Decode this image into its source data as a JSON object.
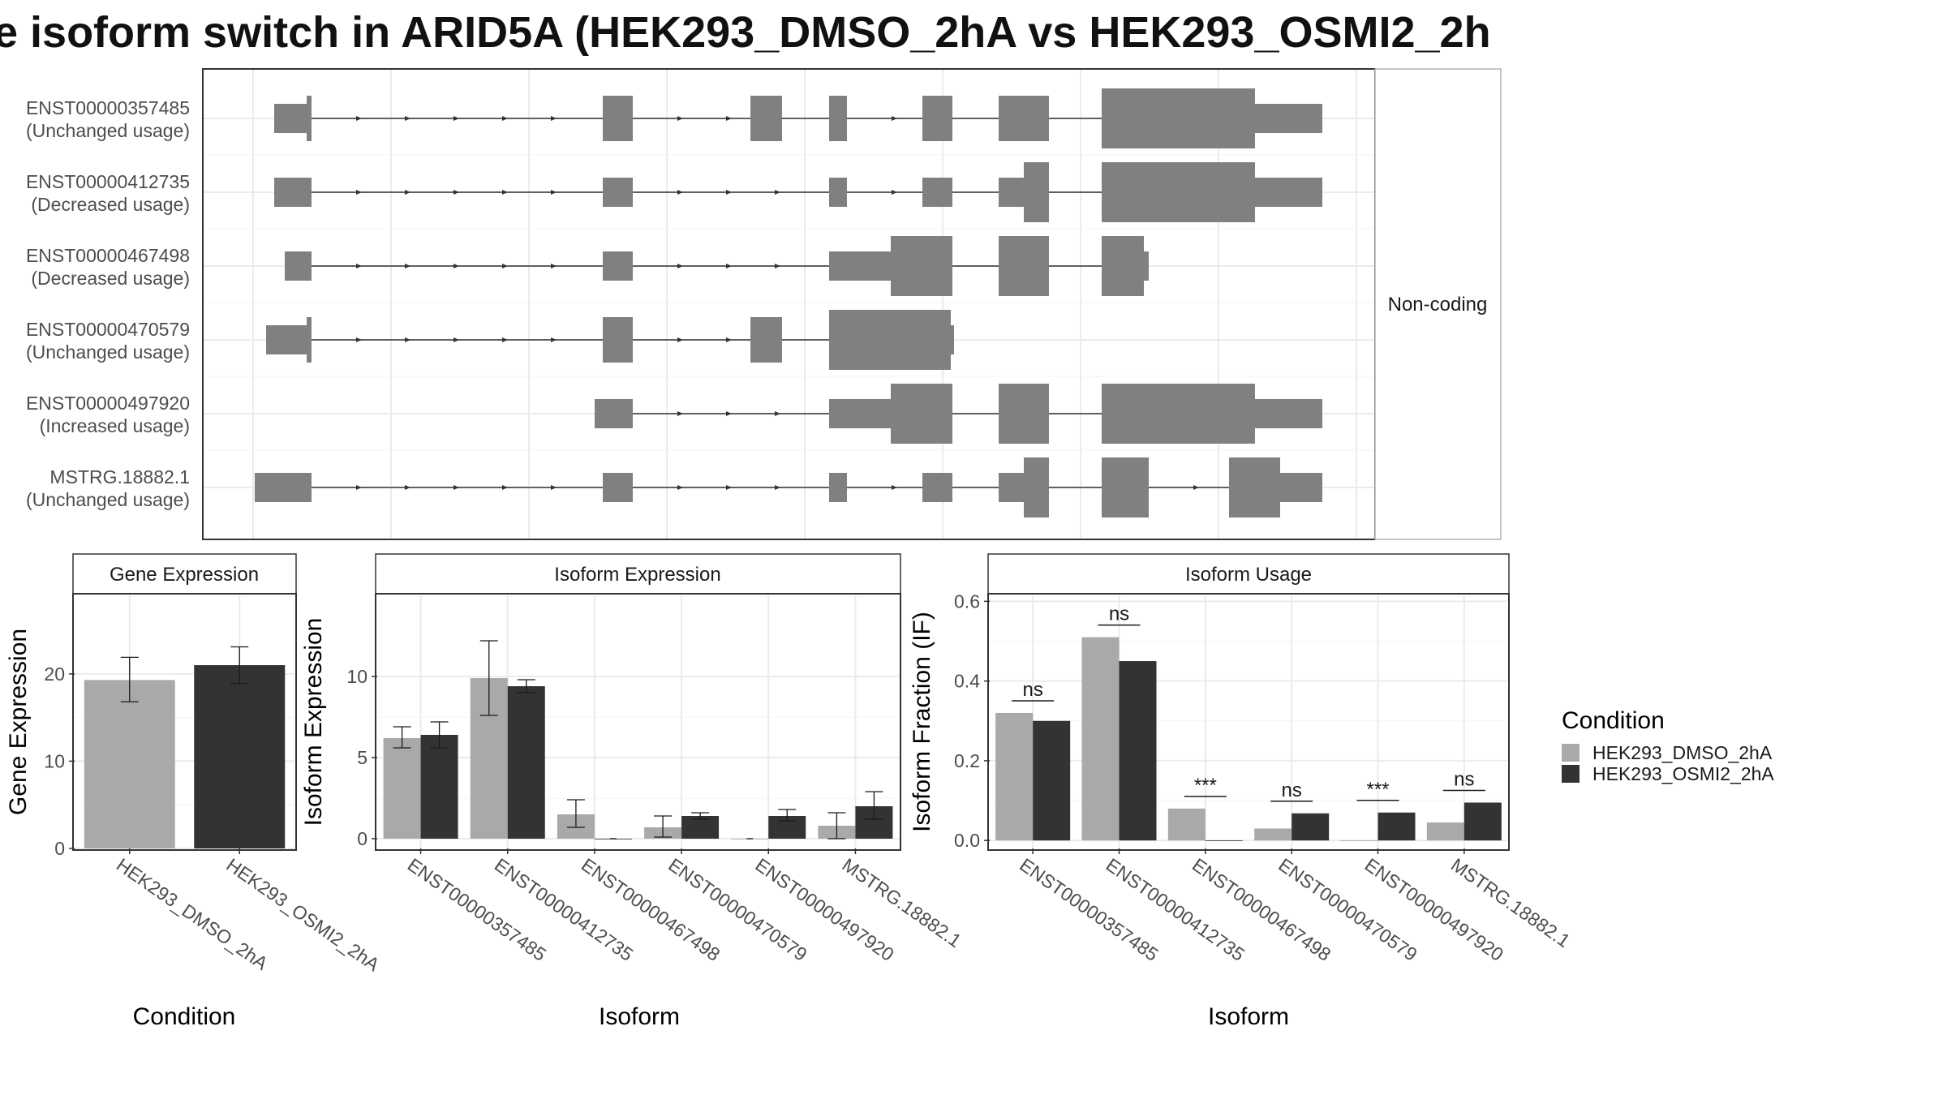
{
  "title": "e isoform switch in ARID5A (HEK293_DMSO_2hA vs HEK293_OSMI2_2h",
  "colors": {
    "exon": "#808080",
    "dmso": "#a9a9a9",
    "osmi2": "#333333",
    "grid": "#ebebeb",
    "panel_border": "#333333"
  },
  "structure": {
    "side_label": "Non-coding",
    "transcripts": [
      {
        "id": "ENST00000357485",
        "usage": "(Unchanged usage)"
      },
      {
        "id": "ENST00000412735",
        "usage": "(Decreased usage)"
      },
      {
        "id": "ENST00000467498",
        "usage": "(Decreased usage)"
      },
      {
        "id": "ENST00000470579",
        "usage": "(Unchanged usage)"
      },
      {
        "id": "ENST00000497920",
        "usage": "(Increased usage)"
      },
      {
        "id": "MSTRG.18882.1",
        "usage": "(Unchanged usage)"
      }
    ]
  },
  "legend": {
    "title": "Condition",
    "items": [
      "HEK293_DMSO_2hA",
      "HEK293_OSMI2_2hA"
    ]
  },
  "chart_data": [
    {
      "type": "bar",
      "title": "Gene Expression",
      "xlabel": "Condition",
      "ylabel": "Gene Expression",
      "ylim": [
        0,
        29
      ],
      "yticks": [
        0,
        10,
        20
      ],
      "categories": [
        "HEK293_DMSO_2hA",
        "HEK293_OSMI2_2hA"
      ],
      "values": [
        19.3,
        21.0
      ],
      "errors": [
        [
          16.8,
          21.9
        ],
        [
          18.9,
          23.1
        ]
      ]
    },
    {
      "type": "bar",
      "title": "Isoform Expression",
      "xlabel": "Isoform",
      "ylabel": "Isoform Expression",
      "ylim": [
        -0.6,
        15
      ],
      "yticks": [
        0,
        5,
        10
      ],
      "categories": [
        "ENST00000357485",
        "ENST00000412735",
        "ENST00000467498",
        "ENST00000470579",
        "ENST00000497920",
        "MSTRG.18882.1"
      ],
      "series": [
        {
          "name": "HEK293_DMSO_2hA",
          "values": [
            6.2,
            9.9,
            1.5,
            0.7,
            0.0,
            0.8
          ],
          "errors": [
            [
              5.6,
              6.9
            ],
            [
              7.6,
              12.2
            ],
            [
              0.7,
              2.4
            ],
            [
              0.1,
              1.4
            ],
            [
              0.0,
              0.0
            ],
            [
              0.0,
              1.6
            ]
          ]
        },
        {
          "name": "HEK293_OSMI2_2hA",
          "values": [
            6.4,
            9.4,
            0.0,
            1.4,
            1.4,
            2.0
          ],
          "errors": [
            [
              5.6,
              7.2
            ],
            [
              9.0,
              9.8
            ],
            [
              0.0,
              0.0
            ],
            [
              1.2,
              1.6
            ],
            [
              1.1,
              1.8
            ],
            [
              1.2,
              2.9
            ]
          ]
        }
      ]
    },
    {
      "type": "bar",
      "title": "Isoform Usage",
      "xlabel": "Isoform",
      "ylabel": "Isoform Fraction (IF)",
      "ylim": [
        -0.02,
        0.615
      ],
      "yticks": [
        "0.0",
        "0.2",
        "0.4",
        "0.6"
      ],
      "categories": [
        "ENST00000357485",
        "ENST00000412735",
        "ENST00000467498",
        "ENST00000470579",
        "ENST00000497920",
        "MSTRG.18882.1"
      ],
      "series": [
        {
          "name": "HEK293_DMSO_2hA",
          "values": [
            0.32,
            0.51,
            0.08,
            0.03,
            0.0,
            0.045
          ]
        },
        {
          "name": "HEK293_OSMI2_2hA",
          "values": [
            0.3,
            0.45,
            0.0,
            0.068,
            0.07,
            0.095
          ]
        }
      ],
      "significance": [
        "ns",
        "ns",
        "***",
        "ns",
        "***",
        "ns"
      ]
    }
  ]
}
